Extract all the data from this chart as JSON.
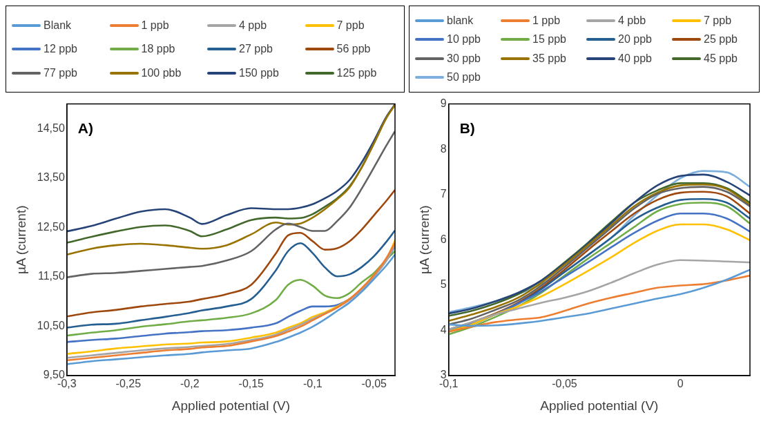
{
  "chart_data": [
    {
      "type": "line",
      "xlabel": "Applied potential (V)",
      "ylabel": "µA (current)",
      "annotations": [
        "A)"
      ],
      "legend": "top",
      "marker": "none",
      "grid": false,
      "x": [
        -0.3,
        -0.28,
        -0.26,
        -0.24,
        -0.22,
        -0.2,
        -0.19,
        -0.17,
        -0.15,
        -0.13,
        -0.12,
        -0.11,
        -0.1,
        -0.09,
        -0.08,
        -0.07,
        -0.06,
        -0.05,
        -0.04,
        -0.033
      ],
      "xlim": [
        -0.3,
        -0.033
      ],
      "xticks": [
        {
          "value": -0.3,
          "label": "-0,3"
        },
        {
          "value": -0.25,
          "label": "-0,25"
        },
        {
          "value": -0.2,
          "label": "-0,2"
        },
        {
          "value": -0.15,
          "label": "-0,15"
        },
        {
          "value": -0.1,
          "label": "-0,1"
        },
        {
          "value": -0.05,
          "label": "-0,05"
        }
      ],
      "ylim": [
        9.5,
        15
      ],
      "yticks": [
        {
          "value": 9.5,
          "label": "9,50"
        },
        {
          "value": 10.5,
          "label": "10,50"
        },
        {
          "value": 11.5,
          "label": "11,50"
        },
        {
          "value": 12.5,
          "label": "12,50"
        },
        {
          "value": 13.5,
          "label": "13,50"
        },
        {
          "value": 14.5,
          "label": "14,50"
        }
      ],
      "series": [
        {
          "name": "Blank",
          "color": "#5b9bd5",
          "values": [
            9.73,
            9.79,
            9.83,
            9.87,
            9.91,
            9.94,
            9.97,
            10.01,
            10.05,
            10.18,
            10.27,
            10.37,
            10.49,
            10.64,
            10.81,
            10.98,
            11.2,
            11.46,
            11.73,
            11.95
          ]
        },
        {
          "name": "1 ppb",
          "color": "#ed7d31",
          "values": [
            9.81,
            9.86,
            9.91,
            9.96,
            10.01,
            10.04,
            10.07,
            10.1,
            10.19,
            10.3,
            10.39,
            10.49,
            10.62,
            10.75,
            10.88,
            11.05,
            11.27,
            11.54,
            11.88,
            12.19
          ]
        },
        {
          "name": "4 ppb",
          "color": "#a5a5a5",
          "values": [
            9.86,
            9.91,
            9.96,
            10.01,
            10.05,
            10.08,
            10.1,
            10.14,
            10.22,
            10.33,
            10.43,
            10.53,
            10.65,
            10.76,
            10.88,
            11.03,
            11.24,
            11.51,
            11.83,
            12.14
          ]
        },
        {
          "name": "7 ppb",
          "color": "#ffc000",
          "values": [
            9.94,
            9.99,
            10.05,
            10.09,
            10.13,
            10.15,
            10.17,
            10.19,
            10.27,
            10.37,
            10.47,
            10.56,
            10.69,
            10.78,
            10.9,
            11.05,
            11.27,
            11.54,
            11.85,
            12.24
          ]
        },
        {
          "name": "12 ppb",
          "color": "#4472c4",
          "values": [
            10.18,
            10.22,
            10.25,
            10.3,
            10.35,
            10.38,
            10.4,
            10.42,
            10.47,
            10.56,
            10.69,
            10.81,
            10.9,
            10.9,
            10.93,
            11.05,
            11.24,
            11.51,
            11.83,
            12.12
          ]
        },
        {
          "name": "18 ppb",
          "color": "#70ad47",
          "values": [
            10.31,
            10.37,
            10.42,
            10.49,
            10.54,
            10.6,
            10.62,
            10.67,
            10.76,
            11.03,
            11.34,
            11.44,
            11.32,
            11.12,
            11.07,
            11.17,
            11.39,
            11.58,
            11.85,
            12.02
          ]
        },
        {
          "name": "27 ppb",
          "color": "#255e91",
          "values": [
            10.47,
            10.53,
            10.55,
            10.62,
            10.69,
            10.77,
            10.82,
            10.9,
            11.05,
            11.63,
            12.02,
            12.18,
            11.98,
            11.69,
            11.51,
            11.55,
            11.7,
            11.92,
            12.21,
            12.44
          ]
        },
        {
          "name": "56 ppb",
          "color": "#9e480e",
          "values": [
            10.7,
            10.78,
            10.83,
            10.9,
            10.95,
            11.0,
            11.05,
            11.15,
            11.34,
            11.97,
            12.34,
            12.39,
            12.22,
            12.05,
            12.08,
            12.22,
            12.46,
            12.75,
            13.04,
            13.26
          ]
        },
        {
          "name": "77 ppb",
          "color": "#636363",
          "values": [
            11.49,
            11.56,
            11.58,
            11.62,
            11.66,
            11.7,
            11.72,
            11.83,
            12.02,
            12.46,
            12.58,
            12.51,
            12.43,
            12.43,
            12.63,
            12.9,
            13.29,
            13.72,
            14.16,
            14.45
          ]
        },
        {
          "name": "100 pbb",
          "color": "#997300",
          "values": [
            11.95,
            12.07,
            12.14,
            12.17,
            12.14,
            12.09,
            12.07,
            12.14,
            12.36,
            12.6,
            12.56,
            12.58,
            12.7,
            12.87,
            13.07,
            13.31,
            13.72,
            14.21,
            14.72,
            14.98
          ]
        },
        {
          "name": "150 ppb",
          "color": "#264478",
          "values": [
            12.42,
            12.53,
            12.68,
            12.82,
            12.87,
            12.7,
            12.57,
            12.75,
            12.89,
            12.87,
            12.87,
            12.9,
            12.97,
            13.09,
            13.24,
            13.46,
            13.82,
            14.26,
            14.74,
            14.99
          ]
        },
        {
          "name": "125 ppb",
          "color": "#43682b",
          "values": [
            12.19,
            12.31,
            12.42,
            12.51,
            12.54,
            12.43,
            12.32,
            12.46,
            12.65,
            12.7,
            12.68,
            12.69,
            12.77,
            12.92,
            13.09,
            13.33,
            13.72,
            14.21,
            14.72,
            14.99
          ]
        }
      ]
    },
    {
      "type": "line",
      "xlabel": "Applied potential (V)",
      "ylabel": "µA (current)",
      "annotations": [
        "B)"
      ],
      "legend": "top",
      "marker": "none",
      "grid": false,
      "x": [
        -0.1,
        -0.09,
        -0.08,
        -0.07,
        -0.06,
        -0.05,
        -0.04,
        -0.03,
        -0.02,
        -0.01,
        0,
        0.01,
        0.02,
        0.03
      ],
      "xlim": [
        -0.1,
        0.03
      ],
      "xticks": [
        {
          "value": -0.1,
          "label": "-0,1"
        },
        {
          "value": -0.05,
          "label": "-0,05"
        },
        0
      ],
      "ylim": [
        3,
        9
      ],
      "yticks": [
        3,
        4,
        5,
        6,
        7,
        8,
        9
      ],
      "series": [
        {
          "name": "blank",
          "color": "#5b9bd5",
          "values": [
            4.13,
            4.1,
            4.11,
            4.15,
            4.21,
            4.29,
            4.37,
            4.48,
            4.59,
            4.7,
            4.8,
            4.94,
            5.12,
            5.34
          ]
        },
        {
          "name": "1 ppb",
          "color": "#ed7d31",
          "values": [
            3.97,
            4.08,
            4.18,
            4.24,
            4.29,
            4.43,
            4.59,
            4.72,
            4.83,
            4.94,
            4.99,
            5.02,
            5.1,
            5.21
          ]
        },
        {
          "name": "4 pbb",
          "color": "#a5a5a5",
          "values": [
            4.02,
            4.18,
            4.35,
            4.48,
            4.61,
            4.72,
            4.86,
            5.05,
            5.26,
            5.45,
            5.55,
            5.54,
            5.52,
            5.5
          ]
        },
        {
          "name": "7 ppb",
          "color": "#ffc000",
          "values": [
            3.97,
            4.13,
            4.35,
            4.53,
            4.75,
            5.02,
            5.31,
            5.61,
            5.93,
            6.2,
            6.34,
            6.34,
            6.23,
            5.99
          ]
        },
        {
          "name": "10 ppb",
          "color": "#4472c4",
          "values": [
            4.02,
            4.16,
            4.35,
            4.59,
            4.86,
            5.18,
            5.5,
            5.83,
            6.15,
            6.42,
            6.58,
            6.58,
            6.47,
            6.18
          ]
        },
        {
          "name": "15 ppb",
          "color": "#70ad47",
          "values": [
            3.91,
            4.08,
            4.29,
            4.53,
            4.83,
            5.21,
            5.58,
            5.93,
            6.28,
            6.63,
            6.79,
            6.82,
            6.74,
            6.36
          ]
        },
        {
          "name": "20 ppb",
          "color": "#255e91",
          "values": [
            3.97,
            4.13,
            4.35,
            4.59,
            4.91,
            5.29,
            5.66,
            6.04,
            6.44,
            6.71,
            6.88,
            6.9,
            6.82,
            6.47
          ]
        },
        {
          "name": "25 ppb",
          "color": "#9e480e",
          "values": [
            4.02,
            4.18,
            4.37,
            4.61,
            4.94,
            5.34,
            5.77,
            6.18,
            6.58,
            6.88,
            7.04,
            7.06,
            6.96,
            6.58
          ]
        },
        {
          "name": "30 ppb",
          "color": "#636363",
          "values": [
            4.13,
            4.26,
            4.45,
            4.66,
            4.99,
            5.4,
            5.83,
            6.26,
            6.69,
            7.01,
            7.14,
            7.17,
            7.06,
            6.74
          ]
        },
        {
          "name": "35 ppb",
          "color": "#997300",
          "values": [
            4.21,
            4.35,
            4.51,
            4.72,
            5.05,
            5.45,
            5.88,
            6.31,
            6.74,
            7.04,
            7.2,
            7.22,
            7.12,
            6.77
          ]
        },
        {
          "name": "40 ppb",
          "color": "#264478",
          "values": [
            4.37,
            4.48,
            4.64,
            4.83,
            5.1,
            5.48,
            5.91,
            6.36,
            6.82,
            7.2,
            7.41,
            7.44,
            7.28,
            6.98
          ]
        },
        {
          "name": "45 ppb",
          "color": "#43682b",
          "values": [
            4.32,
            4.43,
            4.59,
            4.8,
            5.1,
            5.5,
            5.93,
            6.39,
            6.82,
            7.09,
            7.25,
            7.25,
            7.14,
            6.82
          ]
        },
        {
          "name": "50 ppb",
          "color": "#7cafdd",
          "values": [
            4.4,
            4.51,
            4.64,
            4.8,
            5.02,
            5.29,
            5.66,
            6.04,
            6.53,
            6.98,
            7.36,
            7.52,
            7.49,
            7.17
          ]
        }
      ]
    }
  ]
}
